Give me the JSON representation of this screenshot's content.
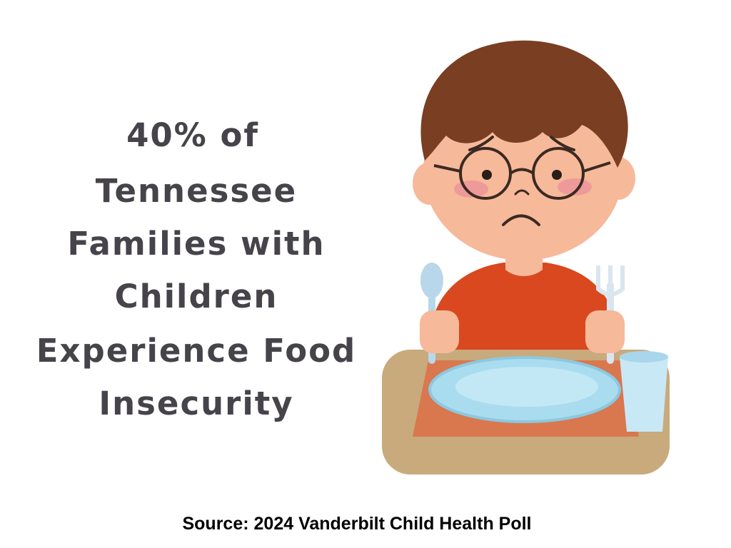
{
  "headline": {
    "lines": [
      "40% of",
      "Tennessee",
      "Families with",
      "Children",
      "Experience Food",
      "Insecurity"
    ]
  },
  "source": "Source: 2024 Vanderbilt Child Health Poll"
}
